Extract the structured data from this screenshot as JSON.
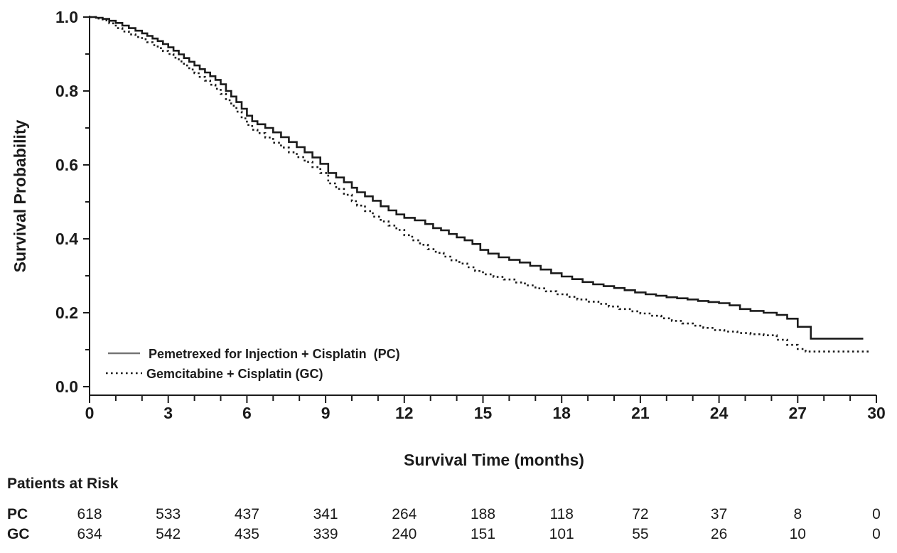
{
  "chart_data": {
    "type": "line",
    "subtype": "kaplan-meier-step",
    "title": "",
    "xlabel": "Survival Time (months)",
    "ylabel": "Survival Probability",
    "xlim": [
      0,
      30
    ],
    "ylim": [
      0.0,
      1.0
    ],
    "x_major_ticks": [
      0,
      3,
      6,
      9,
      12,
      15,
      18,
      21,
      24,
      27,
      30
    ],
    "x_tick_labels": [
      "0",
      "3",
      "6",
      "9",
      "12",
      "15",
      "18",
      "21",
      "24",
      "27",
      "30"
    ],
    "x_minor_tick_step": 1,
    "y_major_ticks": [
      0.0,
      0.2,
      0.4,
      0.6,
      0.8,
      1.0
    ],
    "y_tick_labels": [
      "0.0",
      "0.2",
      "0.4",
      "0.6",
      "0.8",
      "1.0"
    ],
    "y_minor_tick_step": 0.1,
    "grid": false,
    "legend_position": "lower-left-inside",
    "colors": {
      "curve": "#1b1b1b",
      "legend_solid_sample": "#757575",
      "text": "#1b1b1b",
      "background": "#ffffff"
    },
    "series": [
      {
        "name": "Pemetrexed for Injection + Cisplatin  (PC)",
        "short_name": "PC",
        "line_style": "solid",
        "points": [
          [
            0,
            1.0
          ],
          [
            0.25,
            0.998
          ],
          [
            0.5,
            0.995
          ],
          [
            0.75,
            0.99
          ],
          [
            1.0,
            0.984
          ],
          [
            1.25,
            0.977
          ],
          [
            1.5,
            0.97
          ],
          [
            1.75,
            0.963
          ],
          [
            2.0,
            0.956
          ],
          [
            2.2,
            0.949
          ],
          [
            2.4,
            0.942
          ],
          [
            2.6,
            0.935
          ],
          [
            2.8,
            0.927
          ],
          [
            3.0,
            0.918
          ],
          [
            3.2,
            0.909
          ],
          [
            3.4,
            0.899
          ],
          [
            3.6,
            0.889
          ],
          [
            3.8,
            0.879
          ],
          [
            4.0,
            0.869
          ],
          [
            4.2,
            0.859
          ],
          [
            4.4,
            0.85
          ],
          [
            4.6,
            0.84
          ],
          [
            4.8,
            0.83
          ],
          [
            5.0,
            0.818
          ],
          [
            5.2,
            0.8
          ],
          [
            5.4,
            0.785
          ],
          [
            5.6,
            0.77
          ],
          [
            5.8,
            0.752
          ],
          [
            6.0,
            0.733
          ],
          [
            6.2,
            0.718
          ],
          [
            6.4,
            0.71
          ],
          [
            6.7,
            0.7
          ],
          [
            7.0,
            0.688
          ],
          [
            7.3,
            0.675
          ],
          [
            7.6,
            0.662
          ],
          [
            7.9,
            0.648
          ],
          [
            8.2,
            0.634
          ],
          [
            8.5,
            0.62
          ],
          [
            8.8,
            0.603
          ],
          [
            9.1,
            0.578
          ],
          [
            9.4,
            0.566
          ],
          [
            9.7,
            0.553
          ],
          [
            10.0,
            0.538
          ],
          [
            10.2,
            0.526
          ],
          [
            10.5,
            0.515
          ],
          [
            10.8,
            0.503
          ],
          [
            11.1,
            0.488
          ],
          [
            11.4,
            0.477
          ],
          [
            11.7,
            0.466
          ],
          [
            12.0,
            0.457
          ],
          [
            12.4,
            0.45
          ],
          [
            12.8,
            0.44
          ],
          [
            13.1,
            0.429
          ],
          [
            13.4,
            0.423
          ],
          [
            13.7,
            0.413
          ],
          [
            14.0,
            0.404
          ],
          [
            14.3,
            0.396
          ],
          [
            14.6,
            0.386
          ],
          [
            14.9,
            0.37
          ],
          [
            15.2,
            0.36
          ],
          [
            15.6,
            0.35
          ],
          [
            16.0,
            0.343
          ],
          [
            16.4,
            0.336
          ],
          [
            16.8,
            0.327
          ],
          [
            17.2,
            0.317
          ],
          [
            17.6,
            0.307
          ],
          [
            18.0,
            0.298
          ],
          [
            18.4,
            0.291
          ],
          [
            18.8,
            0.283
          ],
          [
            19.2,
            0.277
          ],
          [
            19.6,
            0.272
          ],
          [
            20.0,
            0.267
          ],
          [
            20.4,
            0.261
          ],
          [
            20.8,
            0.255
          ],
          [
            21.2,
            0.25
          ],
          [
            21.6,
            0.246
          ],
          [
            22.0,
            0.242
          ],
          [
            22.4,
            0.239
          ],
          [
            22.8,
            0.236
          ],
          [
            23.2,
            0.232
          ],
          [
            23.6,
            0.229
          ],
          [
            24.0,
            0.226
          ],
          [
            24.4,
            0.22
          ],
          [
            24.8,
            0.21
          ],
          [
            25.2,
            0.205
          ],
          [
            25.7,
            0.2
          ],
          [
            26.2,
            0.194
          ],
          [
            26.6,
            0.184
          ],
          [
            27.0,
            0.162
          ],
          [
            27.5,
            0.13
          ],
          [
            29.5,
            0.13
          ]
        ]
      },
      {
        "name": "Gemcitabine + Cisplatin (GC)",
        "short_name": "GC",
        "line_style": "dotted",
        "points": [
          [
            0,
            1.0
          ],
          [
            0.25,
            0.996
          ],
          [
            0.5,
            0.991
          ],
          [
            0.75,
            0.983
          ],
          [
            1.0,
            0.97
          ],
          [
            1.25,
            0.961
          ],
          [
            1.5,
            0.953
          ],
          [
            1.75,
            0.946
          ],
          [
            2.0,
            0.94
          ],
          [
            2.2,
            0.932
          ],
          [
            2.4,
            0.924
          ],
          [
            2.6,
            0.916
          ],
          [
            2.8,
            0.908
          ],
          [
            3.0,
            0.9
          ],
          [
            3.2,
            0.89
          ],
          [
            3.4,
            0.88
          ],
          [
            3.6,
            0.869
          ],
          [
            3.8,
            0.858
          ],
          [
            4.0,
            0.848
          ],
          [
            4.2,
            0.838
          ],
          [
            4.4,
            0.828
          ],
          [
            4.6,
            0.817
          ],
          [
            4.8,
            0.806
          ],
          [
            5.0,
            0.792
          ],
          [
            5.2,
            0.775
          ],
          [
            5.4,
            0.76
          ],
          [
            5.6,
            0.744
          ],
          [
            5.8,
            0.726
          ],
          [
            6.0,
            0.708
          ],
          [
            6.2,
            0.695
          ],
          [
            6.4,
            0.686
          ],
          [
            6.7,
            0.674
          ],
          [
            7.0,
            0.66
          ],
          [
            7.3,
            0.647
          ],
          [
            7.6,
            0.634
          ],
          [
            7.9,
            0.621
          ],
          [
            8.2,
            0.608
          ],
          [
            8.5,
            0.594
          ],
          [
            8.8,
            0.578
          ],
          [
            9.1,
            0.55
          ],
          [
            9.4,
            0.535
          ],
          [
            9.7,
            0.519
          ],
          [
            10.0,
            0.502
          ],
          [
            10.2,
            0.49
          ],
          [
            10.5,
            0.475
          ],
          [
            10.8,
            0.46
          ],
          [
            11.1,
            0.447
          ],
          [
            11.4,
            0.436
          ],
          [
            11.7,
            0.424
          ],
          [
            12.0,
            0.41
          ],
          [
            12.3,
            0.396
          ],
          [
            12.6,
            0.384
          ],
          [
            12.9,
            0.372
          ],
          [
            13.2,
            0.362
          ],
          [
            13.5,
            0.352
          ],
          [
            13.8,
            0.342
          ],
          [
            14.1,
            0.333
          ],
          [
            14.4,
            0.323
          ],
          [
            14.7,
            0.313
          ],
          [
            15.0,
            0.304
          ],
          [
            15.4,
            0.297
          ],
          [
            15.8,
            0.29
          ],
          [
            16.2,
            0.282
          ],
          [
            16.6,
            0.274
          ],
          [
            17.0,
            0.266
          ],
          [
            17.4,
            0.258
          ],
          [
            17.8,
            0.25
          ],
          [
            18.2,
            0.243
          ],
          [
            18.6,
            0.236
          ],
          [
            19.0,
            0.23
          ],
          [
            19.4,
            0.224
          ],
          [
            19.8,
            0.217
          ],
          [
            20.2,
            0.21
          ],
          [
            20.6,
            0.204
          ],
          [
            21.0,
            0.198
          ],
          [
            21.4,
            0.192
          ],
          [
            21.8,
            0.185
          ],
          [
            22.2,
            0.178
          ],
          [
            22.6,
            0.171
          ],
          [
            23.0,
            0.165
          ],
          [
            23.4,
            0.159
          ],
          [
            23.8,
            0.153
          ],
          [
            24.2,
            0.149
          ],
          [
            24.7,
            0.145
          ],
          [
            25.2,
            0.142
          ],
          [
            25.7,
            0.139
          ],
          [
            26.2,
            0.127
          ],
          [
            26.6,
            0.113
          ],
          [
            27.0,
            0.102
          ],
          [
            27.3,
            0.095
          ],
          [
            29.8,
            0.095
          ]
        ]
      }
    ]
  },
  "risk_table": {
    "title": "Patients at Risk",
    "times": [
      0,
      3,
      6,
      9,
      12,
      15,
      18,
      21,
      24,
      27,
      30
    ],
    "rows": [
      {
        "label": "PC",
        "values": [
          618,
          533,
          437,
          341,
          264,
          188,
          118,
          72,
          37,
          8,
          0
        ]
      },
      {
        "label": "GC",
        "values": [
          634,
          542,
          435,
          339,
          240,
          151,
          101,
          55,
          26,
          10,
          0
        ]
      }
    ]
  }
}
